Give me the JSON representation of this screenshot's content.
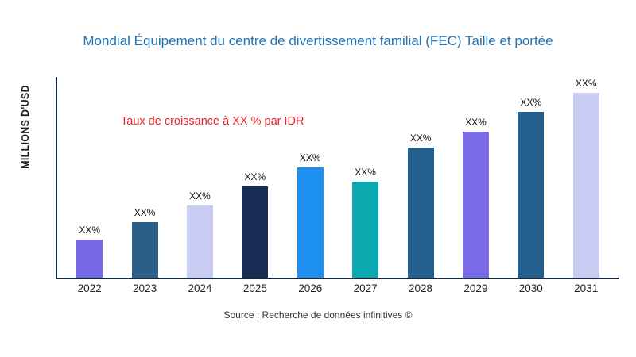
{
  "source": "Source : Recherche de données infinitives ©",
  "colors": {
    "title": "#2173B4",
    "annotation": "#E92428",
    "axis": "#14293E"
  },
  "chart_data": {
    "type": "bar",
    "title": "Mondial Équipement du centre de divertissement familial (FEC) Taille et portée",
    "ylabel": "MILLIONS D'USD",
    "xlabel": "",
    "annotation": "Taux de croissance à XX % par IDR",
    "categories": [
      "2022",
      "2023",
      "2024",
      "2025",
      "2026",
      "2027",
      "2028",
      "2029",
      "2030",
      "2031"
    ],
    "values": [
      47,
      69,
      90,
      114,
      137,
      120,
      162,
      182,
      207,
      230
    ],
    "bar_labels": [
      "XX%",
      "XX%",
      "XX%",
      "XX%",
      "XX%",
      "XX%",
      "XX%",
      "XX%",
      "XX%",
      "XX%"
    ],
    "bar_colors": [
      "#7768E8",
      "#2B5F88",
      "#C8CCF2",
      "#182B53",
      "#1E90F2",
      "#0BA8B0",
      "#235E8C",
      "#7A6CE8",
      "#235E8C",
      "#C8CCF2"
    ],
    "ylim": [
      0,
      250
    ],
    "grid": false,
    "legend": "none"
  }
}
